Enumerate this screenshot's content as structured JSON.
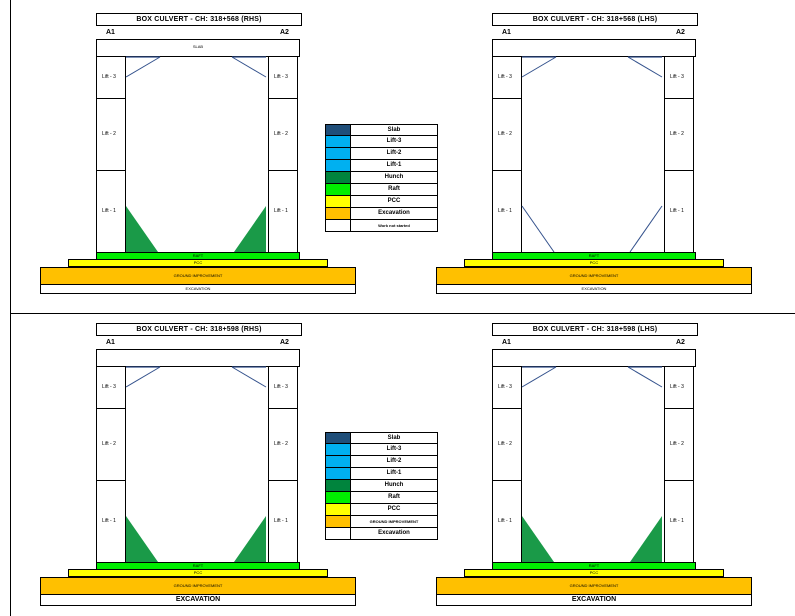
{
  "colors": {
    "slab": "#1f4e79",
    "lift3": "#00b0f0",
    "lift2": "#00b0f0",
    "lift1": "#00b0f0",
    "haunch": "#00843d",
    "raft": "#00ee00",
    "pcc": "#ffff00",
    "ground": "#ffc000",
    "excavation": "#ffc000",
    "haunch_fill": "#1a9a48"
  },
  "panels": [
    {
      "title": "BOX CULVERT - CH: 318+568 (RHS)",
      "end_left": "A1",
      "end_right": "A2",
      "slab_label": "SLAB",
      "lift_labels": [
        "Lift - 3",
        "Lift - 2",
        "Lift - 1"
      ],
      "raft_label": "RAFT",
      "pcc_label": "PCC",
      "ground_label": "GROUND IMPROVEMENT",
      "excavation_label": "EXCAVATION"
    },
    {
      "title": "BOX CULVERT - CH: 318+568 (LHS)",
      "end_left": "A1",
      "end_right": "A2",
      "slab_label": "",
      "lift_labels": [
        "Lift - 3",
        "Lift - 2",
        "Lift - 1"
      ],
      "raft_label": "RAFT",
      "pcc_label": "PCC",
      "ground_label": "GROUND IMPROVEMENT",
      "excavation_label": "EXCAVATION"
    },
    {
      "title": "BOX CULVERT - CH: 318+598 (RHS)",
      "end_left": "A1",
      "end_right": "A2",
      "slab_label": "",
      "lift_labels": [
        "Lift - 3",
        "Lift - 2",
        "Lift - 1"
      ],
      "raft_label": "RAFT",
      "pcc_label": "PCC",
      "ground_label": "GROUND IMPROVEMENT",
      "excavation_label": "EXCAVATION"
    },
    {
      "title": "BOX CULVERT - CH: 318+598 (LHS)",
      "end_left": "A1",
      "end_right": "A2",
      "slab_label": "",
      "lift_labels": [
        "Lift - 3",
        "Lift - 2",
        "Lift - 1"
      ],
      "raft_label": "RAFT",
      "pcc_label": "PCC",
      "ground_label": "GROUND IMPROVEMENT",
      "excavation_label": "EXCAVATION"
    }
  ],
  "legend_top": [
    {
      "label": "Slab",
      "color": "#1f4e79"
    },
    {
      "label": "Lift-3",
      "color": "#00b0f0"
    },
    {
      "label": "Lift-2",
      "color": "#00b0f0"
    },
    {
      "label": "Lift-1",
      "color": "#00b0f0"
    },
    {
      "label": "Hunch",
      "color": "#00843d"
    },
    {
      "label": "Raft",
      "color": "#00ee00"
    },
    {
      "label": "PCC",
      "color": "#ffff00"
    },
    {
      "label": "Excavation",
      "color": "#ffc000"
    },
    {
      "label": "Work not started",
      "color": "#ffffff"
    }
  ],
  "legend_bottom": [
    {
      "label": "Slab",
      "color": "#1f4e79"
    },
    {
      "label": "Lift-3",
      "color": "#00b0f0"
    },
    {
      "label": "Lift-2",
      "color": "#00b0f0"
    },
    {
      "label": "Lift-1",
      "color": "#00b0f0"
    },
    {
      "label": "Hunch",
      "color": "#00843d"
    },
    {
      "label": "Raft",
      "color": "#00ee00"
    },
    {
      "label": "PCC",
      "color": "#ffff00"
    },
    {
      "label": "GROUND IMPROVEMENT",
      "color": "#ffc000"
    },
    {
      "label": "Excavation",
      "color": "#ffffff"
    }
  ]
}
